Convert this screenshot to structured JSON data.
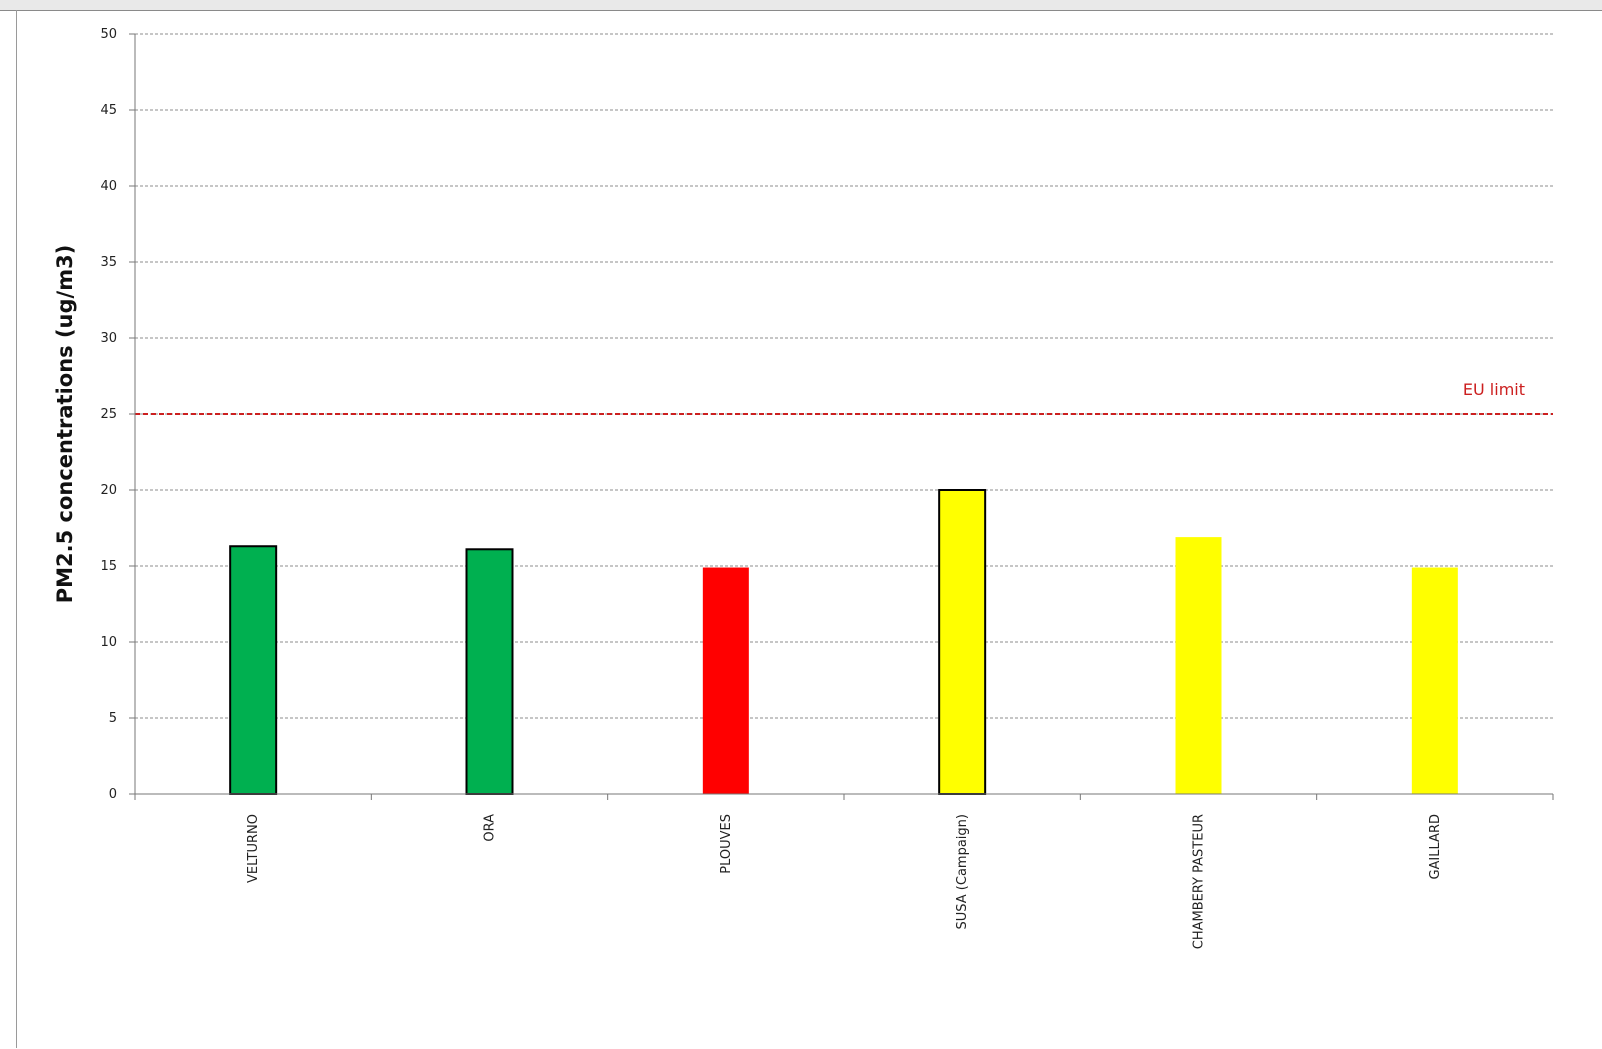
{
  "chart_data": {
    "type": "bar",
    "title": "",
    "xlabel": "",
    "ylabel": "PM2.5 concentrations (ug/m3)",
    "ylim": [
      0,
      50
    ],
    "y_ticks": [
      0,
      5,
      10,
      15,
      20,
      25,
      30,
      35,
      40,
      45,
      50
    ],
    "grid": true,
    "categories": [
      "VELTURNO",
      "ORA",
      "PLOUVES",
      "SUSA (Campaign)",
      "CHAMBERY PASTEUR",
      "GAILLARD"
    ],
    "values": [
      16.3,
      16.1,
      14.9,
      20.0,
      16.9,
      14.9
    ],
    "bar_colors": [
      "#00b050",
      "#00b050",
      "#ff0000",
      "#ffff00",
      "#ffff00",
      "#ffff00"
    ],
    "bar_outlined": [
      true,
      true,
      false,
      true,
      false,
      false
    ],
    "reference_line": {
      "label": "EU limit",
      "value": 25,
      "color": "#cc1f1f"
    }
  }
}
